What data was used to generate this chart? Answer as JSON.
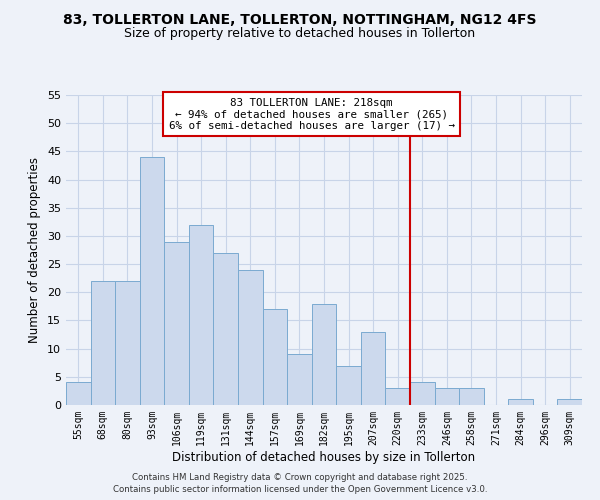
{
  "title": "83, TOLLERTON LANE, TOLLERTON, NOTTINGHAM, NG12 4FS",
  "subtitle": "Size of property relative to detached houses in Tollerton",
  "xlabel": "Distribution of detached houses by size in Tollerton",
  "ylabel": "Number of detached properties",
  "bin_labels": [
    "55sqm",
    "68sqm",
    "80sqm",
    "93sqm",
    "106sqm",
    "119sqm",
    "131sqm",
    "144sqm",
    "157sqm",
    "169sqm",
    "182sqm",
    "195sqm",
    "207sqm",
    "220sqm",
    "233sqm",
    "246sqm",
    "258sqm",
    "271sqm",
    "284sqm",
    "296sqm",
    "309sqm"
  ],
  "bar_heights": [
    4,
    22,
    22,
    44,
    29,
    32,
    27,
    24,
    17,
    9,
    18,
    7,
    13,
    3,
    4,
    3,
    3,
    0,
    1,
    0,
    1
  ],
  "bar_color": "#ccd9ed",
  "bar_edge_color": "#7aaad0",
  "vline_x": 13.5,
  "vline_color": "#cc0000",
  "annotation_title": "83 TOLLERTON LANE: 218sqm",
  "annotation_line1": "← 94% of detached houses are smaller (265)",
  "annotation_line2": "6% of semi-detached houses are larger (17) →",
  "annotation_box_color": "#ffffff",
  "annotation_box_edge": "#cc0000",
  "ylim": [
    0,
    55
  ],
  "yticks": [
    0,
    5,
    10,
    15,
    20,
    25,
    30,
    35,
    40,
    45,
    50,
    55
  ],
  "footer1": "Contains HM Land Registry data © Crown copyright and database right 2025.",
  "footer2": "Contains public sector information licensed under the Open Government Licence v3.0.",
  "bg_color": "#eef2f9",
  "grid_color": "#c8d4e8"
}
